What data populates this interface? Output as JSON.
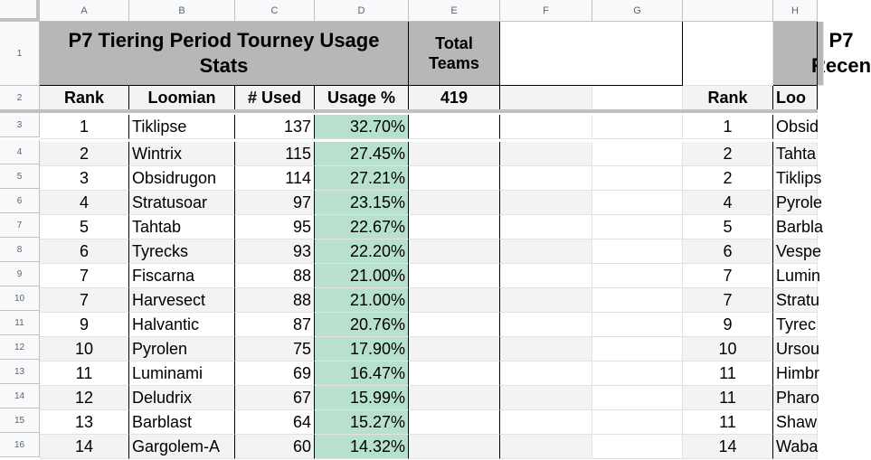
{
  "columns": [
    "A",
    "B",
    "C",
    "D",
    "E",
    "F",
    "G",
    "H"
  ],
  "rows": [
    "1",
    "2",
    "3",
    "4",
    "5",
    "6",
    "7",
    "8",
    "9",
    "10",
    "11",
    "12",
    "13",
    "14",
    "15",
    "16"
  ],
  "main": {
    "title": "P7 Tiering Period Tourney Usage Stats",
    "total_label": "Total Teams",
    "total_value": "419",
    "headers": [
      "Rank",
      "Loomian",
      "# Used",
      "Usage %"
    ],
    "data": [
      [
        "1",
        "Tiklipse",
        "137",
        "32.70%"
      ],
      [
        "2",
        "Wintrix",
        "115",
        "27.45%"
      ],
      [
        "3",
        "Obsidrugon",
        "114",
        "27.21%"
      ],
      [
        "4",
        "Stratusoar",
        "97",
        "23.15%"
      ],
      [
        "5",
        "Tahtab",
        "95",
        "22.67%"
      ],
      [
        "6",
        "Tyrecks",
        "93",
        "22.20%"
      ],
      [
        "7",
        "Fiscarna",
        "88",
        "21.00%"
      ],
      [
        "7",
        "Harvesect",
        "88",
        "21.00%"
      ],
      [
        "9",
        "Halvantic",
        "87",
        "20.76%"
      ],
      [
        "10",
        "Pyrolen",
        "75",
        "17.90%"
      ],
      [
        "11",
        "Luminami",
        "69",
        "16.47%"
      ],
      [
        "12",
        "Deludrix",
        "67",
        "15.99%"
      ],
      [
        "13",
        "Barblast",
        "64",
        "15.27%"
      ],
      [
        "14",
        "Gargolem-A",
        "60",
        "14.32%"
      ]
    ]
  },
  "second": {
    "title": "P7 Recen",
    "headers": [
      "Rank",
      "Loo"
    ],
    "data": [
      [
        "1",
        "Obsid"
      ],
      [
        "2",
        "Tahta"
      ],
      [
        "2",
        "Tiklips"
      ],
      [
        "4",
        "Pyrole"
      ],
      [
        "5",
        "Barbla"
      ],
      [
        "6",
        "Vespe"
      ],
      [
        "7",
        "Lumin"
      ],
      [
        "7",
        "Stratu"
      ],
      [
        "9",
        "Tyrec"
      ],
      [
        "10",
        "Ursou"
      ],
      [
        "11",
        "Himbr"
      ],
      [
        "11",
        "Pharo"
      ],
      [
        "11",
        "Shaw"
      ],
      [
        "14",
        "Waba"
      ]
    ]
  }
}
